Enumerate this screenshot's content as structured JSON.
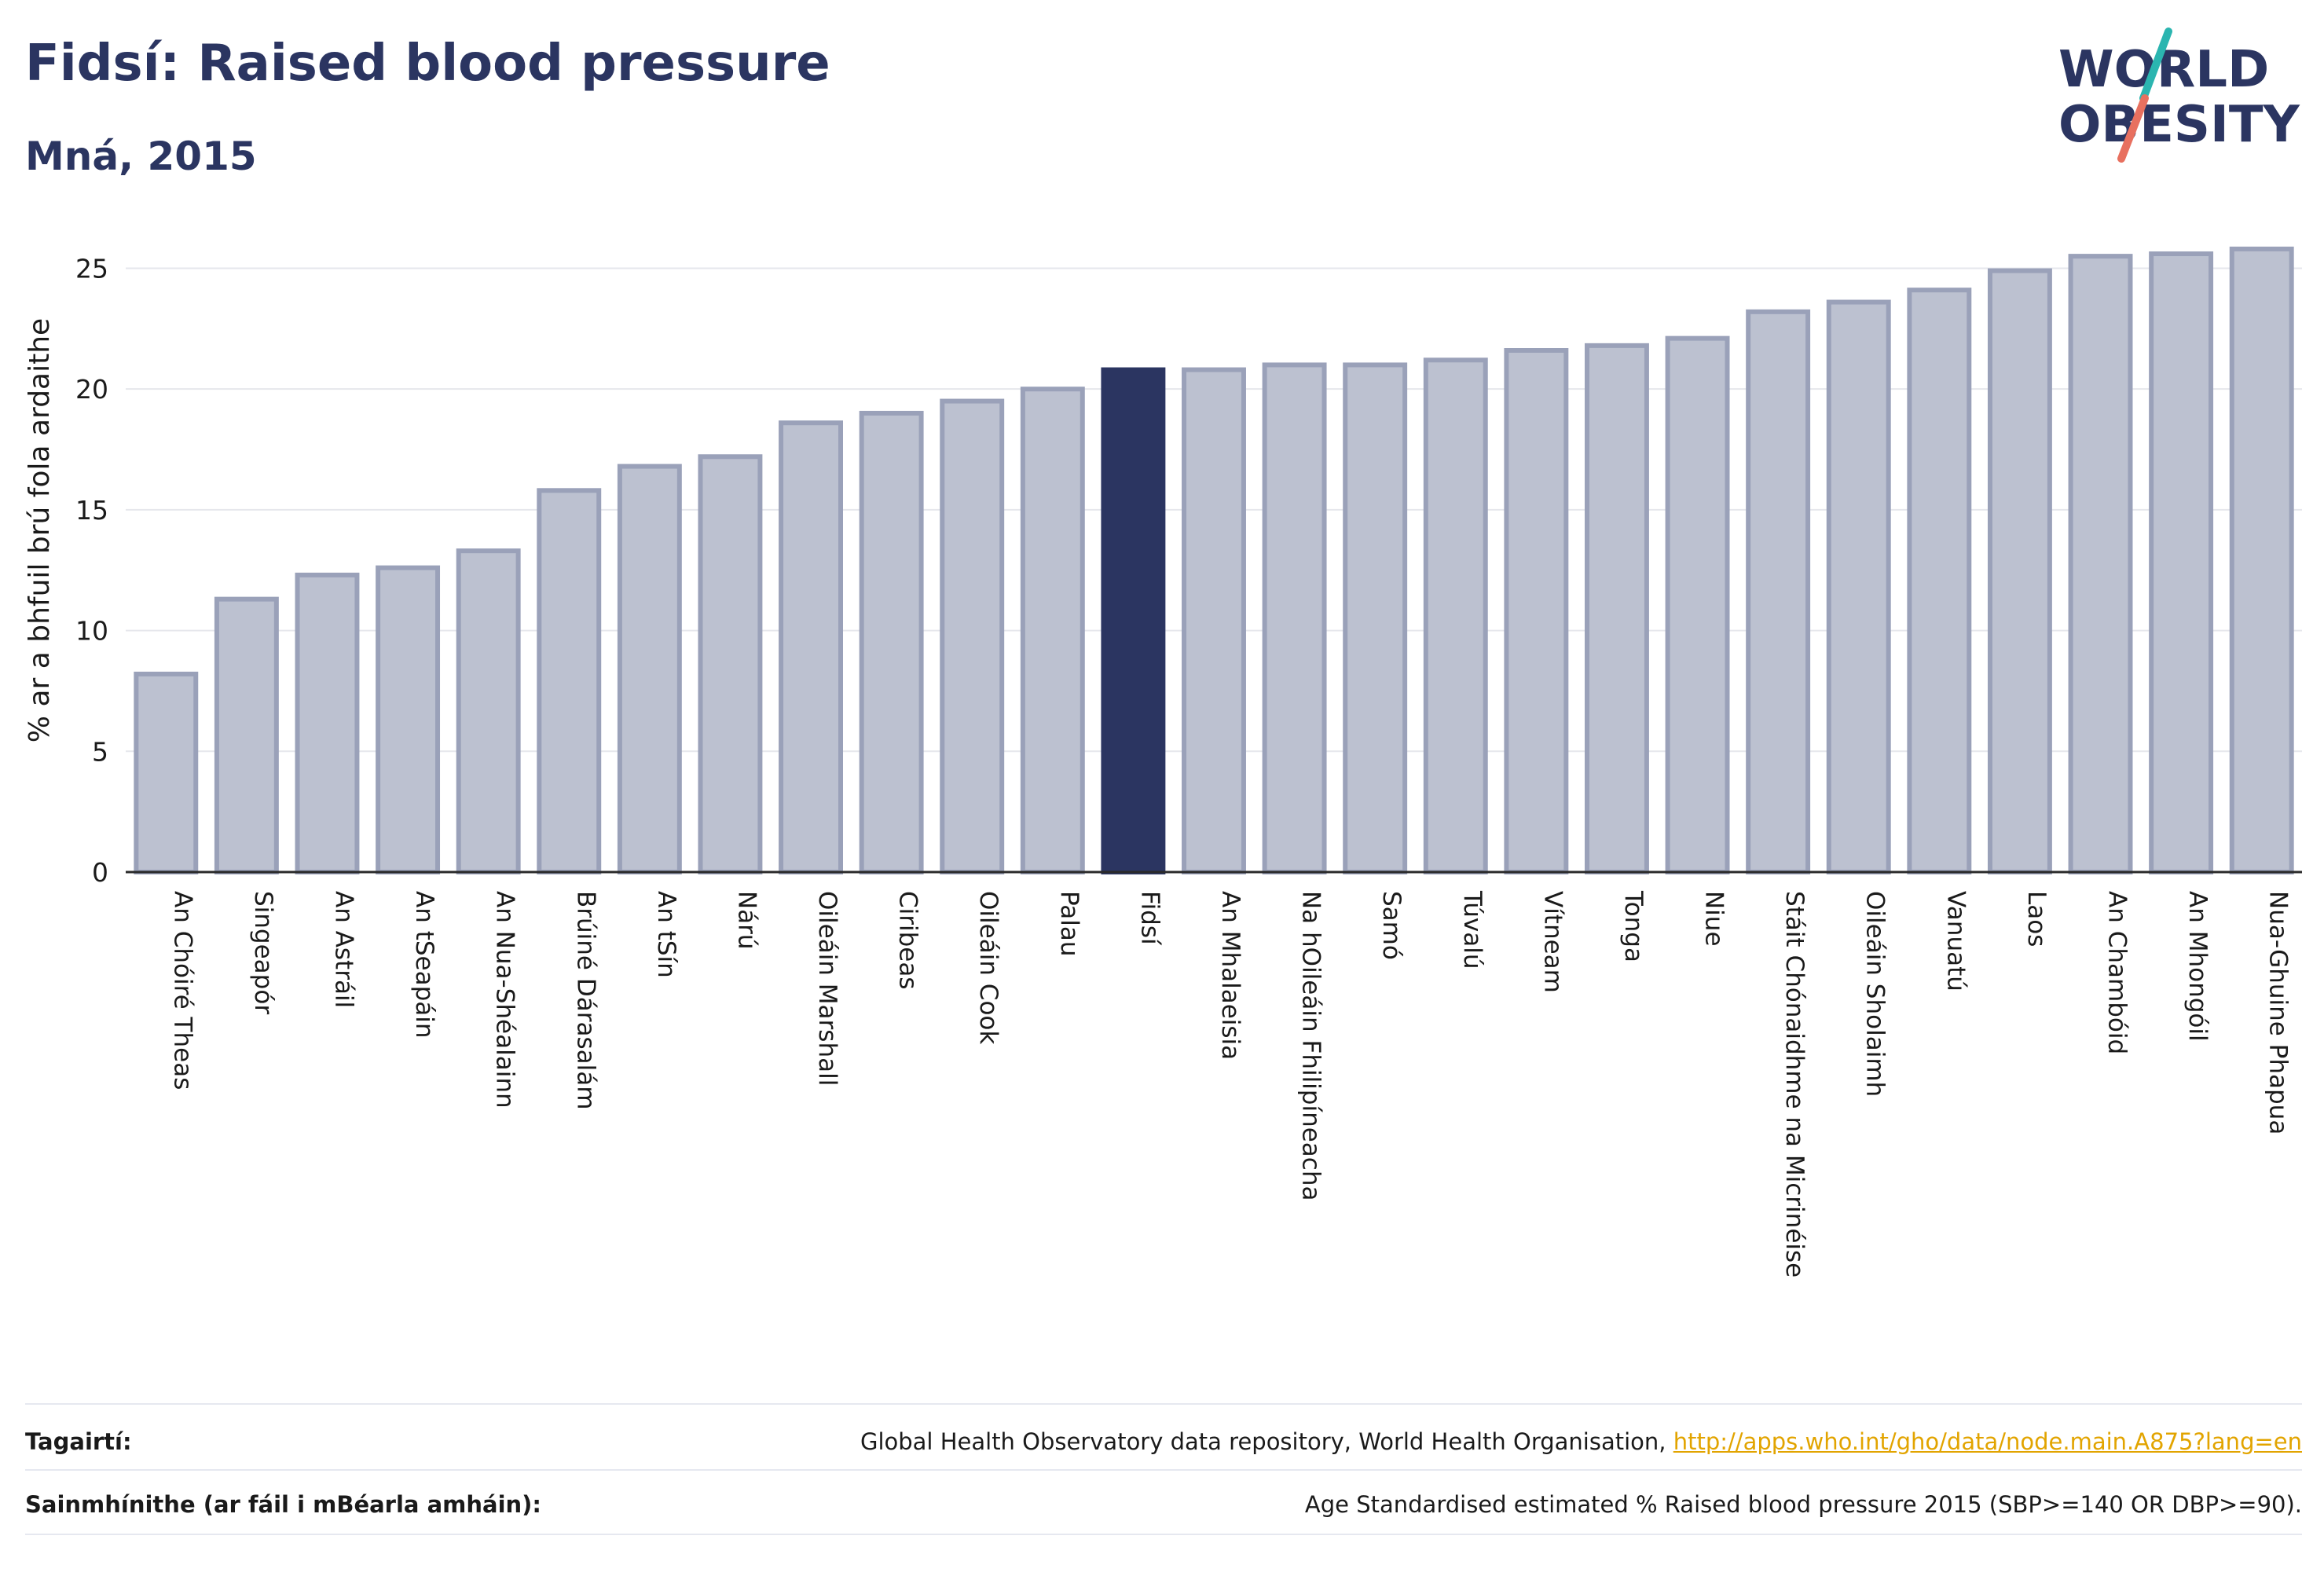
{
  "header": {
    "title": "Fidsí: Raised blood pressure",
    "subtitle": "Mná, 2015"
  },
  "logo": {
    "line1": "WORLD",
    "line2": "OBESITY",
    "colors": {
      "text": "#2b3561",
      "slash_teal": "#2bb5b0",
      "slash_coral": "#e8705f"
    }
  },
  "chart_data": {
    "type": "bar",
    "ylabel": "% ar a bhfuil brú fola ardaithe",
    "ylim": [
      0,
      27
    ],
    "yticks": [
      0,
      5,
      10,
      15,
      20,
      25
    ],
    "grid": true,
    "highlight": "Fidsí",
    "colors": {
      "bar": "#bcc1d0",
      "bar_edge": "#9aa1b9",
      "highlight": "#2b3561"
    },
    "categories": [
      "An Chóiré Theas",
      "Singeapór",
      "An Astráil",
      "An tSeapáin",
      "An Nua-Shéalainn",
      "Brúiné Dárasalám",
      "An tSín",
      "Nárú",
      "Oileáin Marshall",
      "Ciribeas",
      "Oileáin Cook",
      "Palau",
      "Fidsí",
      "An Mhalaeisia",
      "Na hOileáin Fhilipíneacha",
      "Samó",
      "Túvalú",
      "Vítneam",
      "Tonga",
      "Niue",
      "Stáit Chónaidhme na Micrinéise",
      "Oileáin Sholaimh",
      "Vanuatú",
      "Laos",
      "An Chambóid",
      "An Mhongóil",
      "Nua-Ghuine Phapua"
    ],
    "values": [
      8.2,
      11.3,
      12.3,
      12.6,
      13.3,
      15.8,
      16.8,
      17.2,
      18.6,
      19.0,
      19.5,
      20.0,
      20.8,
      20.8,
      21.0,
      21.0,
      21.2,
      21.6,
      21.8,
      22.1,
      23.2,
      23.6,
      24.1,
      24.9,
      25.5,
      25.6,
      25.8
    ]
  },
  "footer": {
    "references_label": "Tagairtí:",
    "references_text": "Global Health Observatory data repository, World Health Organisation, ",
    "references_link": "http://apps.who.int/gho/data/node.main.A875?lang=en",
    "definitions_label": "Sainmhínithe (ar fáil i mBéarla amháin):",
    "definitions_text": "Age Standardised estimated % Raised blood pressure 2015 (SBP>=140 OR DBP>=90)."
  }
}
